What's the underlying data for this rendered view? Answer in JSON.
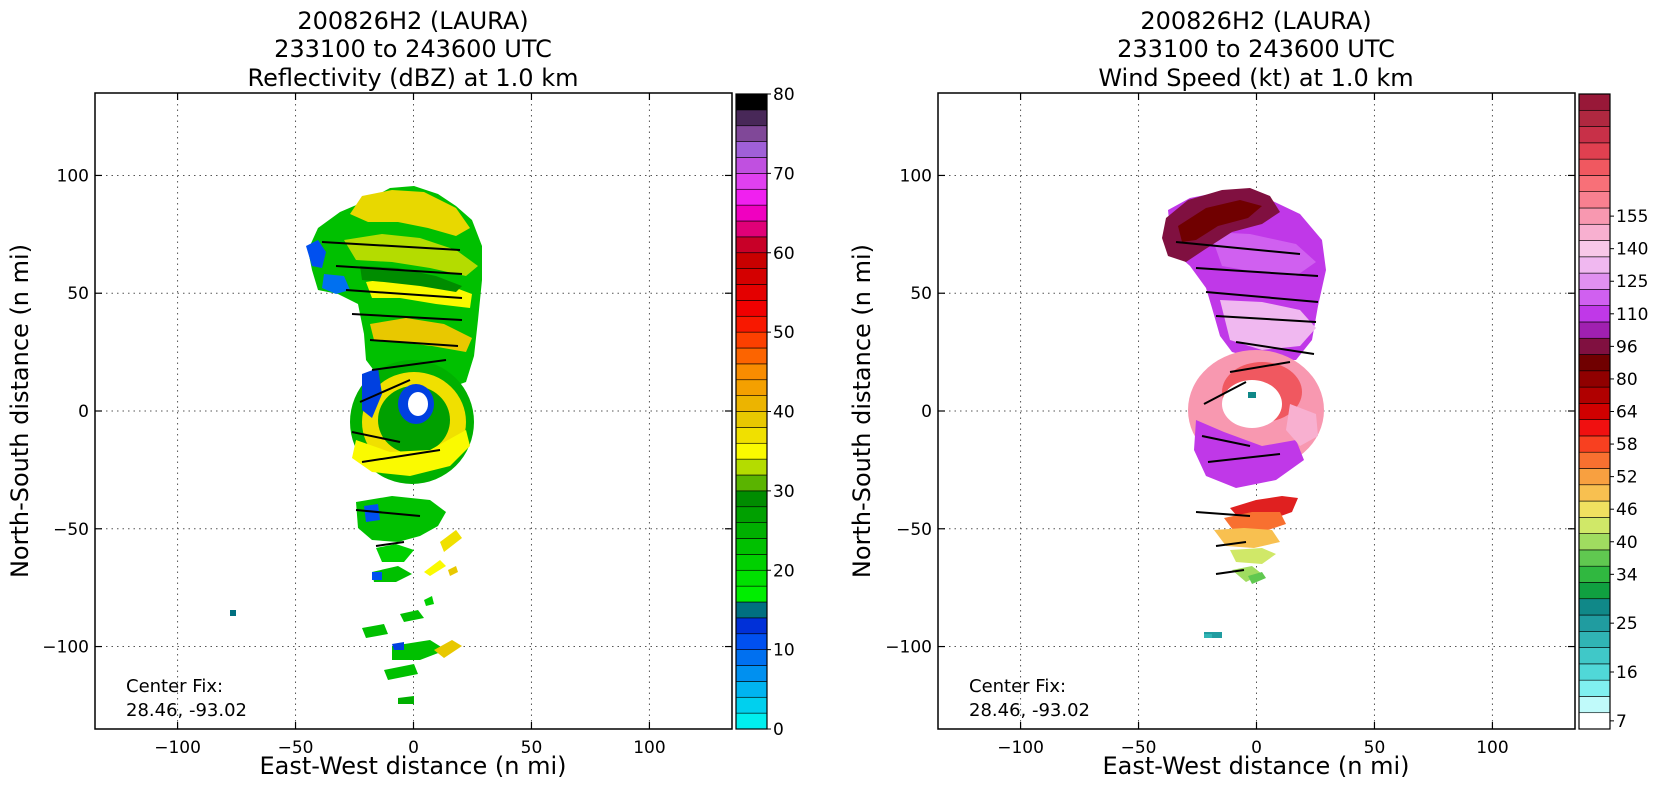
{
  "chart_data": [
    {
      "type": "heatmap",
      "title": [
        "200826H2 (LAURA)",
        "233100 to 243600 UTC",
        "Reflectivity (dBZ) at 1.0 km"
      ],
      "xlabel": "East-West distance (n mi)",
      "ylabel": "North-South distance (n mi)",
      "xlim": [
        -135,
        135
      ],
      "ylim": [
        -135,
        135
      ],
      "xticks": [
        -100,
        -50,
        0,
        50,
        100
      ],
      "yticks": [
        -100,
        -50,
        0,
        50,
        100
      ],
      "grid": true,
      "annotation": [
        "Center Fix:",
        "28.46, -93.02"
      ],
      "colorbar": {
        "min": 0,
        "max": 80,
        "step": 2.5,
        "tick_labels": [
          "0",
          "10",
          "20",
          "30",
          "40",
          "50",
          "60",
          "70",
          "80"
        ],
        "tick_values": [
          0,
          10,
          20,
          30,
          40,
          50,
          60,
          70,
          80
        ],
        "colors": [
          "#00eeee",
          "#00d0ee",
          "#00b4f0",
          "#0090f0",
          "#0070f0",
          "#0050f0",
          "#0030d8",
          "#007080",
          "#00ee00",
          "#00e000",
          "#00d000",
          "#00c000",
          "#00b000",
          "#00a000",
          "#008c00",
          "#5ab400",
          "#b4dc00",
          "#fafa00",
          "#f0e000",
          "#e8c800",
          "#ecb400",
          "#f4a000",
          "#f88c00",
          "#fc6400",
          "#fc4000",
          "#f81800",
          "#f00000",
          "#e40000",
          "#d40000",
          "#c80000",
          "#c80028",
          "#e00078",
          "#f000c0",
          "#f020f0",
          "#e040f0",
          "#c050e0",
          "#a060d8",
          "#804898",
          "#482858",
          "#000000"
        ]
      }
    },
    {
      "type": "heatmap",
      "title": [
        "200826H2 (LAURA)",
        "233100 to 243600 UTC",
        "Wind Speed (kt) at 1.0 km"
      ],
      "xlabel": "East-West distance (n mi)",
      "ylabel": "North-South distance (n mi)",
      "xlim": [
        -135,
        135
      ],
      "ylim": [
        -135,
        135
      ],
      "xticks": [
        -100,
        -50,
        0,
        50,
        100
      ],
      "yticks": [
        -100,
        -50,
        0,
        50,
        100
      ],
      "grid": true,
      "annotation": [
        "Center Fix:",
        "28.46, -93.02"
      ],
      "colorbar": {
        "tick_labels": [
          "7",
          "16",
          "25",
          "34",
          "40",
          "46",
          "52",
          "58",
          "64",
          "80",
          "96",
          "110",
          "125",
          "140",
          "155"
        ],
        "tick_levels": [
          0,
          3,
          6,
          9,
          11,
          13,
          15,
          17,
          19,
          21,
          23,
          25,
          27,
          29,
          31
        ],
        "colors": [
          "#ffffff",
          "#c0fafa",
          "#80f0f0",
          "#50d8d8",
          "#40c8c8",
          "#30b4b4",
          "#209ca0",
          "#108888",
          "#10a040",
          "#30b840",
          "#60c850",
          "#a0dc60",
          "#d0e868",
          "#f0e060",
          "#f8c050",
          "#f8a040",
          "#f87030",
          "#f84020",
          "#f01010",
          "#d00000",
          "#b00000",
          "#900000",
          "#700000",
          "#801040",
          "#a020b0",
          "#c038e8",
          "#d060f0",
          "#e090f0",
          "#f0b8f0",
          "#f8c8e8",
          "#f8b0d0",
          "#f898b0",
          "#f88090",
          "#f87078",
          "#f05860",
          "#e04050",
          "#c83048",
          "#b02840",
          "#981838"
        ]
      }
    }
  ]
}
